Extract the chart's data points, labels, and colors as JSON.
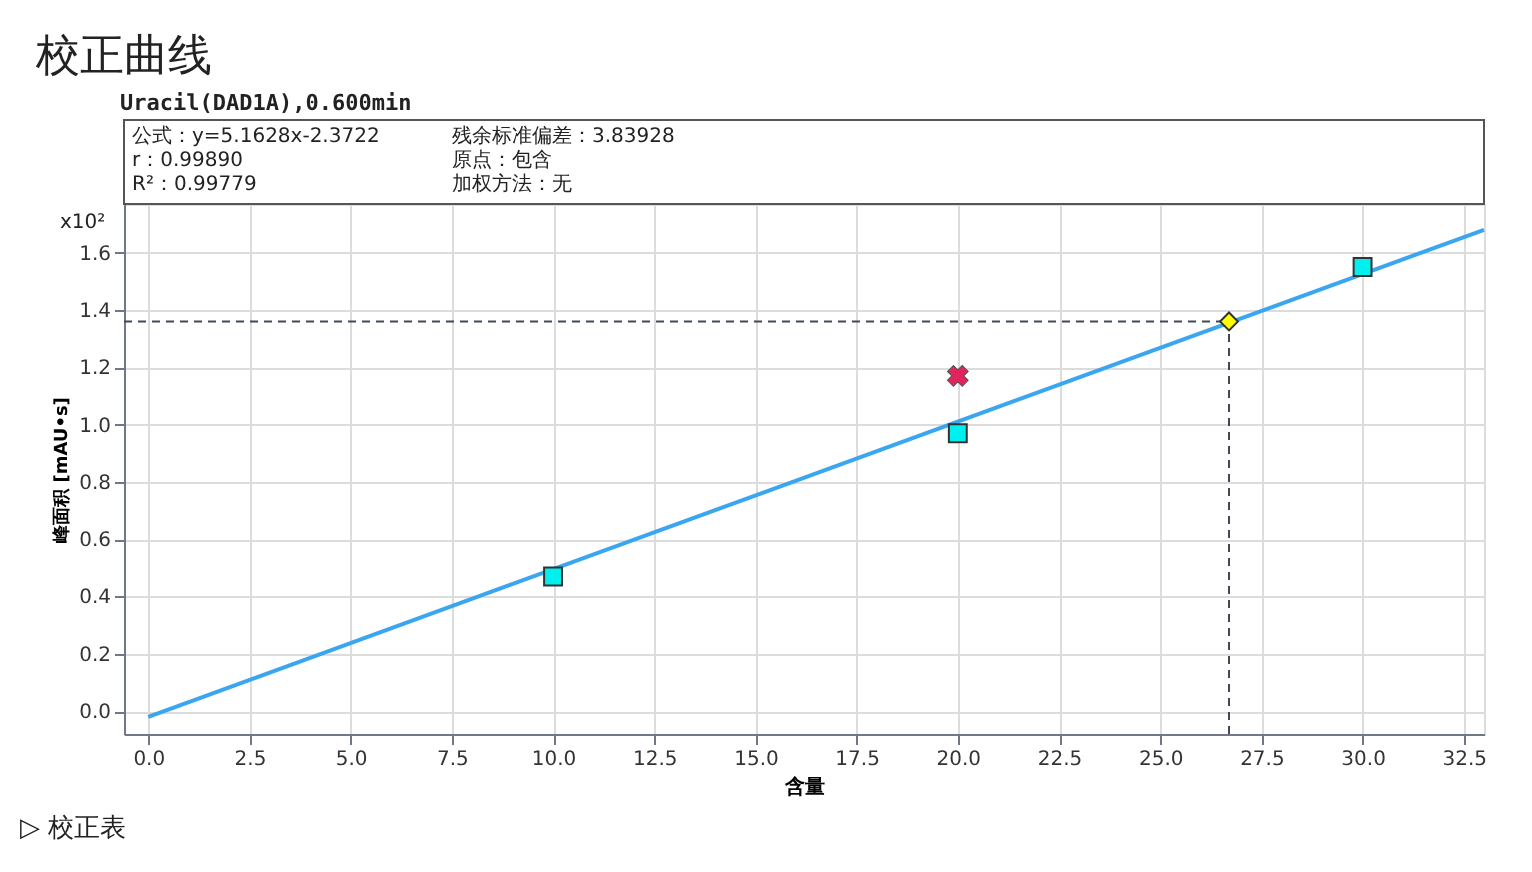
{
  "chart_data": {
    "type": "scatter",
    "title": "校正曲线",
    "subtitle": "Uracil(DAD1A),0.600min",
    "xlabel": "含量",
    "ylabel": "峰面积 [mAU•s]",
    "xlim": [
      -0.6,
      33.0
    ],
    "ylim": [
      -0.08,
      1.77
    ],
    "xticks": [
      {
        "value": 0,
        "label": "0.0"
      },
      2.5,
      {
        "value": 5,
        "label": "5.0"
      },
      7.5,
      {
        "value": 10,
        "label": "10.0"
      },
      12.5,
      {
        "value": 15,
        "label": "15.0"
      },
      17.5,
      {
        "value": 20,
        "label": "20.0"
      },
      22.5,
      {
        "value": 25,
        "label": "25.0"
      },
      27.5,
      {
        "value": 30,
        "label": "30.0"
      },
      32.5
    ],
    "yticks": [
      {
        "value": 0,
        "label": "0.0"
      },
      0.2,
      0.4,
      0.6,
      0.8,
      {
        "value": 1,
        "label": "1.0"
      },
      1.2,
      1.4,
      1.6
    ],
    "grid": true,
    "series": [
      {
        "type": "line",
        "color": "#3aa6f0",
        "x": [
          0,
          33.0
        ],
        "values": [
          -0.02,
          1.68
        ],
        "marker": "none",
        "line_style": "solid"
      },
      {
        "color": "#00f0f0",
        "x": [
          10,
          20,
          30
        ],
        "values": [
          0.47,
          0.97,
          1.55
        ],
        "marker": "square"
      },
      {
        "color": "#e0245e",
        "x": [
          20
        ],
        "values": [
          1.17
        ],
        "marker": "cross"
      },
      {
        "color": "#ffff00",
        "x": [
          26.7
        ],
        "values": [
          1.36
        ],
        "marker": "diamond"
      }
    ],
    "ref_lines": [
      {
        "axis": "y",
        "value": 1.36,
        "color": "#404858",
        "line_style": "dashed"
      },
      {
        "axis": "x",
        "value": 26.7,
        "color": "#404858",
        "line_style": "dashed"
      }
    ],
    "annotations": [
      "公式：y=5.1628x-2.3722",
      "r：0.99890",
      "R²：0.99779",
      "残余标准偏差：3.83928",
      "原点：包含",
      "加权方法：无",
      "x10²",
      "▷ 校正表"
    ]
  }
}
